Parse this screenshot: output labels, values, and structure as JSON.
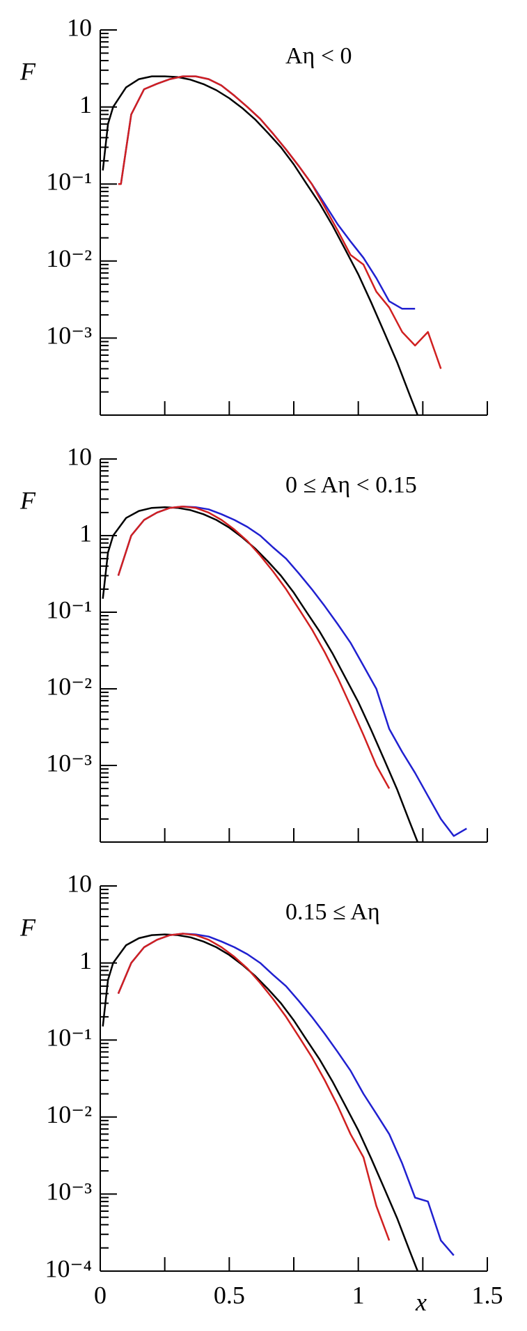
{
  "chart_data": [
    {
      "type": "line",
      "ylog": true,
      "annotation": "Aη < 0",
      "ylabel": "F",
      "xlim": [
        0,
        1.5
      ],
      "ylim": [
        0.0001,
        10
      ],
      "yticks": [
        10,
        1,
        {
          "value": 0.1,
          "label": "10⁻¹"
        },
        {
          "value": 0.01,
          "label": "10⁻²"
        },
        {
          "value": 0.001,
          "label": "10⁻³"
        }
      ],
      "xunlabeled_ticks": [
        0.25,
        0.5,
        0.75,
        1,
        1.25,
        1.5
      ],
      "series": [
        {
          "color": "#000000",
          "x": [
            0.01,
            0.03,
            0.05,
            0.1,
            0.15,
            0.2,
            0.25,
            0.3,
            0.35,
            0.4,
            0.45,
            0.5,
            0.55,
            0.6,
            0.65,
            0.7,
            0.75,
            0.8,
            0.85,
            0.9,
            0.95,
            1.0,
            1.05,
            1.1,
            1.15,
            1.2,
            1.23
          ],
          "values": [
            0.15,
            0.6,
            1.0,
            1.8,
            2.3,
            2.5,
            2.5,
            2.45,
            2.26,
            1.98,
            1.65,
            1.3,
            0.97,
            0.69,
            0.46,
            0.3,
            0.18,
            0.1,
            0.056,
            0.029,
            0.014,
            0.0067,
            0.0029,
            0.0012,
            0.00049,
            0.00018,
            0.0001
          ]
        },
        {
          "color": "#2020d0",
          "x": [
            0.07,
            0.08,
            0.12,
            0.17,
            0.22,
            0.27,
            0.32,
            0.37,
            0.42,
            0.47,
            0.52,
            0.57,
            0.62,
            0.67,
            0.72,
            0.77,
            0.82,
            0.87,
            0.92,
            0.97,
            1.02,
            1.07,
            1.12,
            1.17,
            1.22
          ],
          "values": [
            0.1,
            0.1,
            0.8,
            1.7,
            2.0,
            2.3,
            2.5,
            2.5,
            2.3,
            1.9,
            1.4,
            1.0,
            0.7,
            0.45,
            0.28,
            0.17,
            0.1,
            0.055,
            0.03,
            0.018,
            0.011,
            0.006,
            0.003,
            0.0024,
            0.0024
          ]
        },
        {
          "color": "#d02020",
          "x": [
            0.07,
            0.08,
            0.12,
            0.17,
            0.22,
            0.27,
            0.32,
            0.37,
            0.42,
            0.47,
            0.52,
            0.57,
            0.62,
            0.67,
            0.72,
            0.77,
            0.82,
            0.87,
            0.92,
            0.97,
            1.02,
            1.07,
            1.12,
            1.17,
            1.22,
            1.27,
            1.32
          ],
          "values": [
            0.1,
            0.1,
            0.8,
            1.7,
            2.0,
            2.3,
            2.5,
            2.5,
            2.3,
            1.9,
            1.4,
            1.0,
            0.7,
            0.45,
            0.28,
            0.17,
            0.1,
            0.05,
            0.025,
            0.012,
            0.009,
            0.004,
            0.0025,
            0.0012,
            0.0008,
            0.0012,
            0.0004
          ]
        }
      ]
    },
    {
      "type": "line",
      "ylog": true,
      "annotation": "0 ≤ Aη < 0.15",
      "ylabel": "F",
      "xlim": [
        0,
        1.5
      ],
      "ylim": [
        0.0001,
        10
      ],
      "yticks": [
        10,
        1,
        {
          "value": 0.1,
          "label": "10⁻¹"
        },
        {
          "value": 0.01,
          "label": "10⁻²"
        },
        {
          "value": 0.001,
          "label": "10⁻³"
        }
      ],
      "xunlabeled_ticks": [
        0.25,
        0.5,
        0.75,
        1,
        1.25,
        1.5
      ],
      "series": [
        {
          "color": "#000000",
          "x": [
            0.01,
            0.03,
            0.05,
            0.1,
            0.15,
            0.2,
            0.25,
            0.3,
            0.35,
            0.4,
            0.45,
            0.5,
            0.55,
            0.6,
            0.65,
            0.7,
            0.75,
            0.8,
            0.85,
            0.9,
            0.95,
            1.0,
            1.05,
            1.1,
            1.15,
            1.2,
            1.23
          ],
          "values": [
            0.15,
            0.6,
            1.0,
            1.7,
            2.1,
            2.3,
            2.35,
            2.3,
            2.15,
            1.9,
            1.6,
            1.27,
            0.95,
            0.68,
            0.46,
            0.3,
            0.18,
            0.1,
            0.056,
            0.029,
            0.014,
            0.0067,
            0.0029,
            0.0012,
            0.00049,
            0.00018,
            0.0001
          ]
        },
        {
          "color": "#2020d0",
          "x": [
            0.07,
            0.12,
            0.17,
            0.22,
            0.27,
            0.32,
            0.37,
            0.42,
            0.47,
            0.52,
            0.57,
            0.62,
            0.67,
            0.72,
            0.77,
            0.82,
            0.87,
            0.92,
            0.97,
            1.02,
            1.07,
            1.12,
            1.17,
            1.22,
            1.27,
            1.32,
            1.37,
            1.42
          ],
          "values": [
            0.3,
            1.0,
            1.6,
            2.0,
            2.3,
            2.4,
            2.35,
            2.2,
            1.9,
            1.6,
            1.3,
            1.0,
            0.7,
            0.5,
            0.32,
            0.2,
            0.12,
            0.07,
            0.04,
            0.02,
            0.01,
            0.003,
            0.0015,
            0.0008,
            0.0004,
            0.0002,
            0.00012,
            0.00015
          ]
        },
        {
          "color": "#d02020",
          "x": [
            0.07,
            0.12,
            0.17,
            0.22,
            0.27,
            0.32,
            0.37,
            0.42,
            0.47,
            0.52,
            0.57,
            0.62,
            0.67,
            0.72,
            0.77,
            0.82,
            0.87,
            0.92,
            0.97,
            1.02,
            1.07,
            1.12
          ],
          "values": [
            0.3,
            1.0,
            1.6,
            2.0,
            2.3,
            2.4,
            2.3,
            2.0,
            1.6,
            1.2,
            0.85,
            0.55,
            0.34,
            0.2,
            0.11,
            0.06,
            0.03,
            0.014,
            0.006,
            0.0025,
            0.001,
            0.0005
          ]
        }
      ]
    },
    {
      "type": "line",
      "ylog": true,
      "annotation": "0.15 ≤ Aη",
      "ylabel": "F",
      "xlabel": "x",
      "xlim": [
        0,
        1.5
      ],
      "ylim": [
        0.0001,
        10
      ],
      "yticks": [
        10,
        1,
        {
          "value": 0.1,
          "label": "10⁻¹"
        },
        {
          "value": 0.01,
          "label": "10⁻²"
        },
        {
          "value": 0.001,
          "label": "10⁻³"
        },
        {
          "value": 0.0001,
          "label": "10⁻⁴"
        }
      ],
      "xticks": [
        0,
        0.5,
        1,
        1.5
      ],
      "xunlabeled_ticks": [
        0.25,
        0.75,
        1.25
      ],
      "series": [
        {
          "color": "#000000",
          "x": [
            0.01,
            0.03,
            0.05,
            0.1,
            0.15,
            0.2,
            0.25,
            0.3,
            0.35,
            0.4,
            0.45,
            0.5,
            0.55,
            0.6,
            0.65,
            0.7,
            0.75,
            0.8,
            0.85,
            0.9,
            0.95,
            1.0,
            1.05,
            1.1,
            1.15,
            1.2,
            1.23
          ],
          "values": [
            0.15,
            0.6,
            1.0,
            1.7,
            2.1,
            2.3,
            2.35,
            2.3,
            2.15,
            1.9,
            1.6,
            1.27,
            0.95,
            0.68,
            0.46,
            0.3,
            0.18,
            0.1,
            0.056,
            0.029,
            0.014,
            0.0067,
            0.0029,
            0.0012,
            0.00049,
            0.00018,
            0.0001
          ]
        },
        {
          "color": "#2020d0",
          "x": [
            0.07,
            0.12,
            0.17,
            0.22,
            0.27,
            0.32,
            0.37,
            0.42,
            0.47,
            0.52,
            0.57,
            0.62,
            0.67,
            0.72,
            0.77,
            0.82,
            0.87,
            0.92,
            0.97,
            1.02,
            1.07,
            1.12,
            1.17,
            1.22,
            1.27,
            1.32,
            1.37
          ],
          "values": [
            0.4,
            1.0,
            1.6,
            2.0,
            2.3,
            2.4,
            2.35,
            2.2,
            1.9,
            1.6,
            1.3,
            1.0,
            0.7,
            0.5,
            0.32,
            0.2,
            0.12,
            0.07,
            0.04,
            0.02,
            0.011,
            0.006,
            0.0025,
            0.0009,
            0.0008,
            0.00025,
            0.00016
          ]
        },
        {
          "color": "#d02020",
          "x": [
            0.07,
            0.12,
            0.17,
            0.22,
            0.27,
            0.32,
            0.37,
            0.42,
            0.47,
            0.52,
            0.57,
            0.62,
            0.67,
            0.72,
            0.77,
            0.82,
            0.87,
            0.92,
            0.97,
            1.02,
            1.07,
            1.12
          ],
          "values": [
            0.4,
            1.0,
            1.6,
            2.0,
            2.3,
            2.4,
            2.3,
            2.0,
            1.6,
            1.2,
            0.85,
            0.55,
            0.34,
            0.2,
            0.11,
            0.06,
            0.03,
            0.014,
            0.006,
            0.003,
            0.0007,
            0.00025
          ]
        }
      ]
    }
  ]
}
